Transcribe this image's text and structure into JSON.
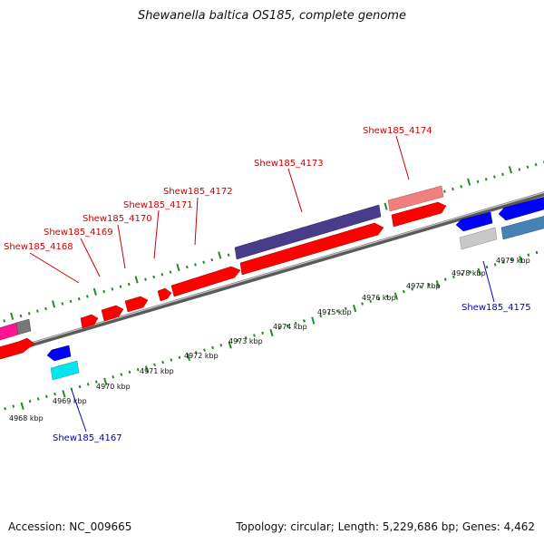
{
  "header": {
    "title": "Shewanella baltica OS185, complete genome"
  },
  "footer": {
    "accession": "Accession: NC_009665",
    "summary": "Topology: circular; Length: 5,229,686 bp; Genes: 4,462"
  },
  "colors": {
    "forward_gene": "#ff0000",
    "forward_gene_pale": "#f08080",
    "forward_gene_long": "#483d8b",
    "forward_gene_pink": "#ff1493",
    "forward_gene_grey": "#808080",
    "reverse_gene": "#0000ff",
    "reverse_gene_cyan": "#00ffff",
    "reverse_gene_steel": "#4682b4",
    "reverse_gene_lightgrey": "#c0c0c0",
    "backbone": "#808080",
    "ticks": "#228b22",
    "forward_label": "#cc0000",
    "reverse_label": "#0000cc"
  },
  "scale": {
    "unit": "kbp",
    "labels": [
      {
        "kbp": 4968,
        "text": "4968 kbp"
      },
      {
        "kbp": 4969,
        "text": "4969 kbp"
      },
      {
        "kbp": 4970,
        "text": "4970 kbp"
      },
      {
        "kbp": 4971,
        "text": "4971 kbp"
      },
      {
        "kbp": 4972,
        "text": "4972 kbp"
      },
      {
        "kbp": 4973,
        "text": "4973 kbp"
      },
      {
        "kbp": 4974,
        "text": "4974 kbp"
      },
      {
        "kbp": 4975,
        "text": "4975 kbp"
      },
      {
        "kbp": 4976,
        "text": "4976 kbp"
      },
      {
        "kbp": 4977,
        "text": "4977 kbp"
      },
      {
        "kbp": 4978,
        "text": "4978 kbp"
      },
      {
        "kbp": 4979,
        "text": "4979 kbp"
      }
    ]
  },
  "gene_labels": [
    {
      "id": "Shew185_4167",
      "strand": "reverse"
    },
    {
      "id": "Shew185_4168",
      "strand": "forward"
    },
    {
      "id": "Shew185_4169",
      "strand": "forward"
    },
    {
      "id": "Shew185_4170",
      "strand": "forward"
    },
    {
      "id": "Shew185_4171",
      "strand": "forward"
    },
    {
      "id": "Shew185_4172",
      "strand": "forward"
    },
    {
      "id": "Shew185_4173",
      "strand": "forward"
    },
    {
      "id": "Shew185_4174",
      "strand": "forward"
    },
    {
      "id": "Shew185_4175",
      "strand": "reverse"
    }
  ]
}
